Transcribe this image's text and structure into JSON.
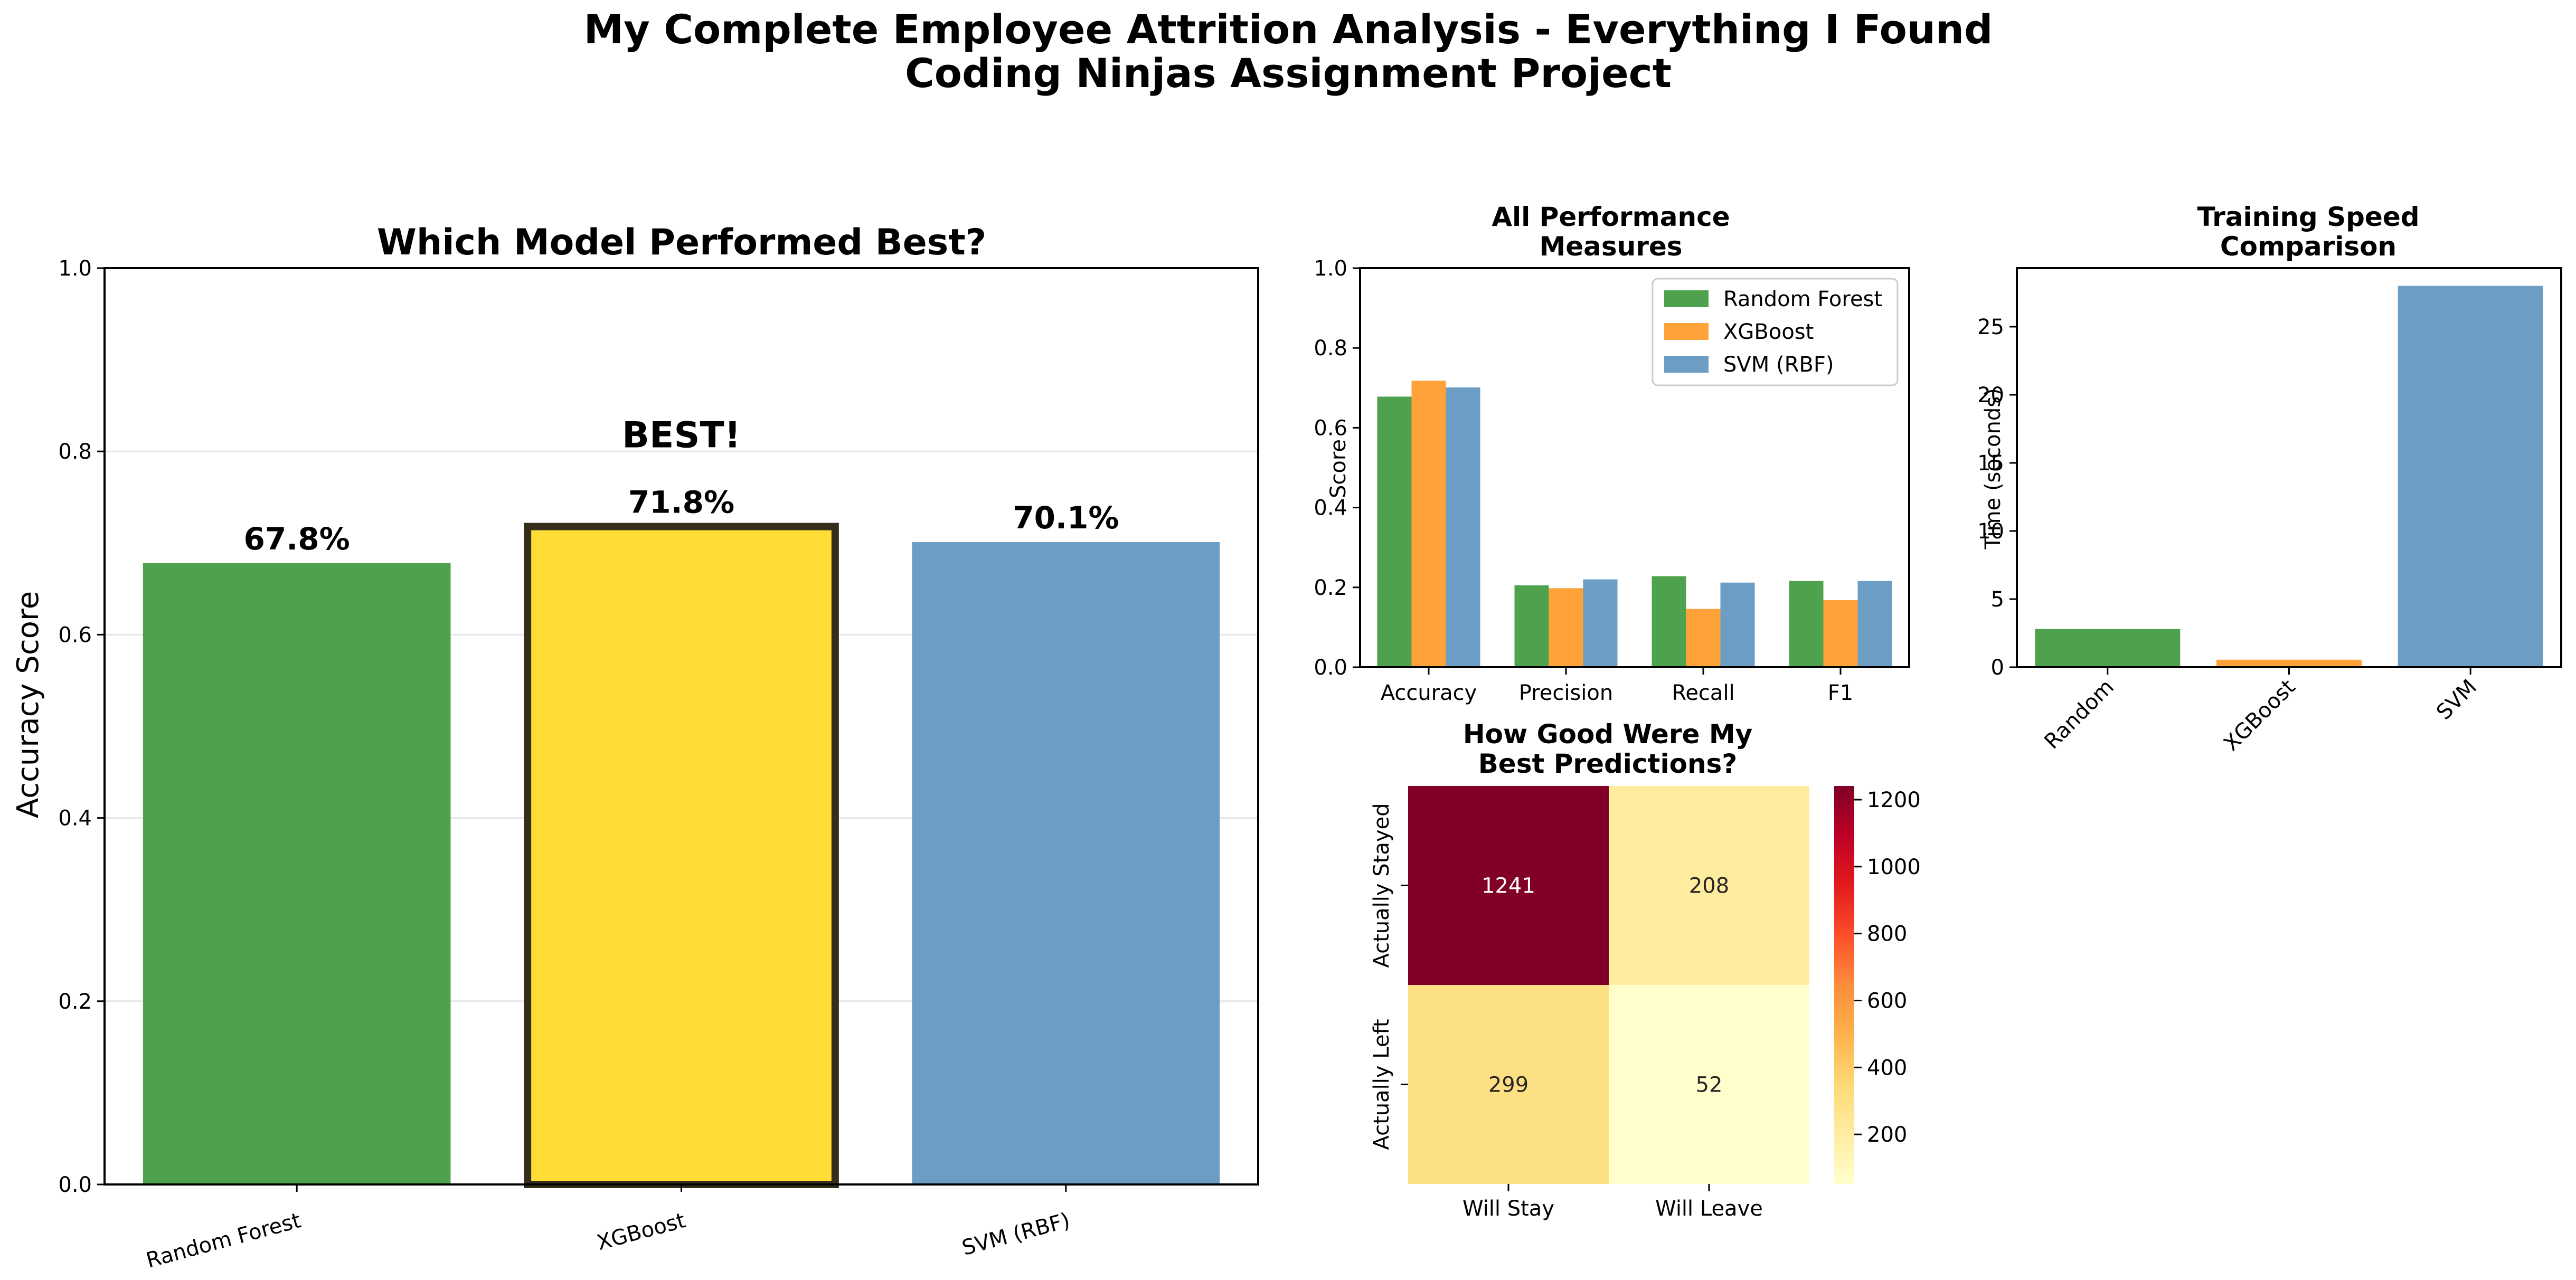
{
  "figure": {
    "suptitle_line1": "My Complete Employee Attrition Analysis - Everything I Found",
    "suptitle_line2": "Coding Ninjas Assignment Project"
  },
  "colors": {
    "green": "#4ea24e",
    "orange": "#ffa23a",
    "blue": "#6c9dc4",
    "gold": "#ffdd36",
    "best_edge": "#332d19",
    "grid": "#e6e6e6"
  },
  "chart_data": [
    {
      "id": "accuracy",
      "type": "bar",
      "title": "Which Model Performed Best?",
      "xlabel": "",
      "ylabel": "Accuracy Score",
      "ylim": [
        0,
        1.0
      ],
      "yticks": [
        "0.0",
        "0.2",
        "0.4",
        "0.6",
        "0.8",
        "1.0"
      ],
      "grid": "y",
      "categories": [
        "Random Forest",
        "XGBoost",
        "SVM (RBF)"
      ],
      "values": [
        0.678,
        0.718,
        0.701
      ],
      "value_labels": [
        "67.8%",
        "71.8%",
        "70.1%"
      ],
      "annotation": "BEST!",
      "annotation_category": "XGBoost"
    },
    {
      "id": "measures",
      "type": "bar",
      "title_line1": "All Performance",
      "title_line2": "Measures",
      "xlabel": "",
      "ylabel": "Score",
      "ylim": [
        0,
        1.0
      ],
      "yticks": [
        "0.0",
        "0.2",
        "0.4",
        "0.6",
        "0.8",
        "1.0"
      ],
      "categories": [
        "Accuracy",
        "Precision",
        "Recall",
        "F1"
      ],
      "series": [
        {
          "name": "Random Forest",
          "values": [
            0.678,
            0.205,
            0.228,
            0.216
          ]
        },
        {
          "name": "XGBoost",
          "values": [
            0.718,
            0.198,
            0.146,
            0.168
          ]
        },
        {
          "name": "SVM (RBF)",
          "values": [
            0.701,
            0.22,
            0.212,
            0.216
          ]
        }
      ],
      "legend": "top-right"
    },
    {
      "id": "speed",
      "type": "bar",
      "title_line1": "Training Speed",
      "title_line2": "Comparison",
      "xlabel": "",
      "ylabel": "Time (seconds)",
      "ylim": [
        0,
        29.3
      ],
      "yticks": [
        "0",
        "5",
        "10",
        "15",
        "20",
        "25"
      ],
      "categories": [
        "Random",
        "XGBoost",
        "SVM"
      ],
      "values": [
        2.8,
        0.55,
        28.0
      ]
    },
    {
      "id": "confusion",
      "type": "heatmap",
      "title_line1": "How Good Were My",
      "title_line2": "Best Predictions?",
      "x_labels": [
        "Will Stay",
        "Will Leave"
      ],
      "y_labels": [
        "Actually Stayed",
        "Actually Left"
      ],
      "values": [
        [
          1241,
          208
        ],
        [
          299,
          52
        ]
      ],
      "colorbar_ticks": [
        "200",
        "400",
        "600",
        "800",
        "1000",
        "1200"
      ],
      "colorbar_range": [
        52,
        1241
      ],
      "colormap": "YlOrRd"
    }
  ]
}
